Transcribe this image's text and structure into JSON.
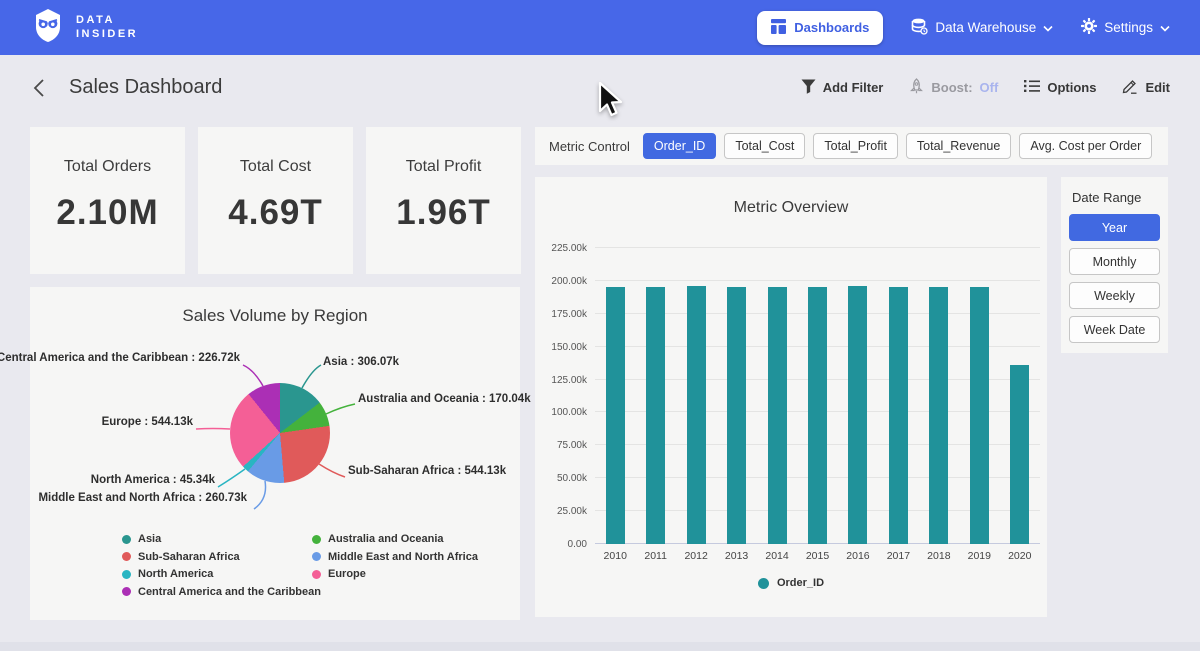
{
  "navbar": {
    "brand_line1": "DATA",
    "brand_line2": "INSIDER",
    "dashboards_label": "Dashboards",
    "data_warehouse_label": "Data Warehouse",
    "settings_label": "Settings"
  },
  "header": {
    "title": "Sales Dashboard",
    "actions": {
      "add_filter": "Add Filter",
      "boost_label": "Boost:",
      "boost_value": "Off",
      "options": "Options",
      "edit": "Edit"
    }
  },
  "kpis": [
    {
      "label": "Total Orders",
      "value": "2.10M"
    },
    {
      "label": "Total Cost",
      "value": "4.69T"
    },
    {
      "label": "Total Profit",
      "value": "1.96T"
    }
  ],
  "metric_control": {
    "label": "Metric Control",
    "buttons": [
      {
        "label": "Order_ID",
        "active": true
      },
      {
        "label": "Total_Cost",
        "active": false
      },
      {
        "label": "Total_Profit",
        "active": false
      },
      {
        "label": "Total_Revenue",
        "active": false
      },
      {
        "label": "Avg. Cost per Order",
        "active": false
      }
    ]
  },
  "date_range": {
    "label": "Date Range",
    "buttons": [
      {
        "label": "Year",
        "active": true
      },
      {
        "label": "Monthly",
        "active": false
      },
      {
        "label": "Weekly",
        "active": false
      },
      {
        "label": "Week Date",
        "active": false
      }
    ]
  },
  "chart_data": [
    {
      "type": "bar",
      "title": "Metric Overview",
      "categories": [
        "2010",
        "2011",
        "2012",
        "2013",
        "2014",
        "2015",
        "2016",
        "2017",
        "2018",
        "2019",
        "2020"
      ],
      "series": [
        {
          "name": "Order_ID",
          "color": "#20929a",
          "values": [
            195.5,
            195.3,
            196.3,
            195.2,
            195.4,
            195.3,
            196.4,
            195.5,
            195.4,
            195.5,
            136.4
          ]
        }
      ],
      "value_unit": "k",
      "ylim": [
        0,
        225
      ],
      "ytick_step": 25,
      "ytick_labels": [
        "0.00",
        "25.00k",
        "50.00k",
        "75.00k",
        "100.00k",
        "125.00k",
        "150.00k",
        "175.00k",
        "200.00k",
        "225.00k"
      ],
      "grid": true,
      "legend_position": "bottom",
      "legend": [
        "Order_ID"
      ]
    },
    {
      "type": "pie",
      "title": "Sales Volume by Region",
      "slices": [
        {
          "label": "Asia",
          "value": 306.07,
          "value_label": "306.07k",
          "callout_text": "Asia : 306.07k",
          "color": "#2a968f"
        },
        {
          "label": "Australia and Oceania",
          "value": 170.04,
          "value_label": "170.04k",
          "callout_text": "Australia and Oceania : 170.04k",
          "color": "#44b23c"
        },
        {
          "label": "Sub-Saharan Africa",
          "value": 544.13,
          "value_label": "544.13k",
          "callout_text": "Sub-Saharan Africa : 544.13k",
          "color": "#e05a5a"
        },
        {
          "label": "Middle East and North Africa",
          "value": 260.73,
          "value_label": "260.73k",
          "callout_text": "Middle East and North Africa : 260.73k",
          "color": "#699be6"
        },
        {
          "label": "North America",
          "value": 45.34,
          "value_label": "45.34k",
          "callout_text": "North America : 45.34k",
          "color": "#29b5c2"
        },
        {
          "label": "Europe",
          "value": 544.13,
          "value_label": "544.13k",
          "callout_text": "Europe : 544.13k",
          "color": "#f45f96"
        },
        {
          "label": "Central America and the Caribbean",
          "value": 226.72,
          "value_label": "226.72k",
          "callout_text": "Central America and the Caribbean : 226.72k",
          "color": "#ab2fb5"
        }
      ],
      "value_unit": "k",
      "start_angle_deg": 0,
      "legend_position": "bottom",
      "legend_columns": [
        [
          0,
          2,
          4,
          6
        ],
        [
          1,
          3,
          5
        ]
      ]
    }
  ],
  "colors": {
    "navbar_blue": "#4767e8",
    "active_button_blue": "#4169e1",
    "bar_teal": "#20929a",
    "page_background": "#e9e9ef",
    "panel_background": "#f6f6f5"
  }
}
